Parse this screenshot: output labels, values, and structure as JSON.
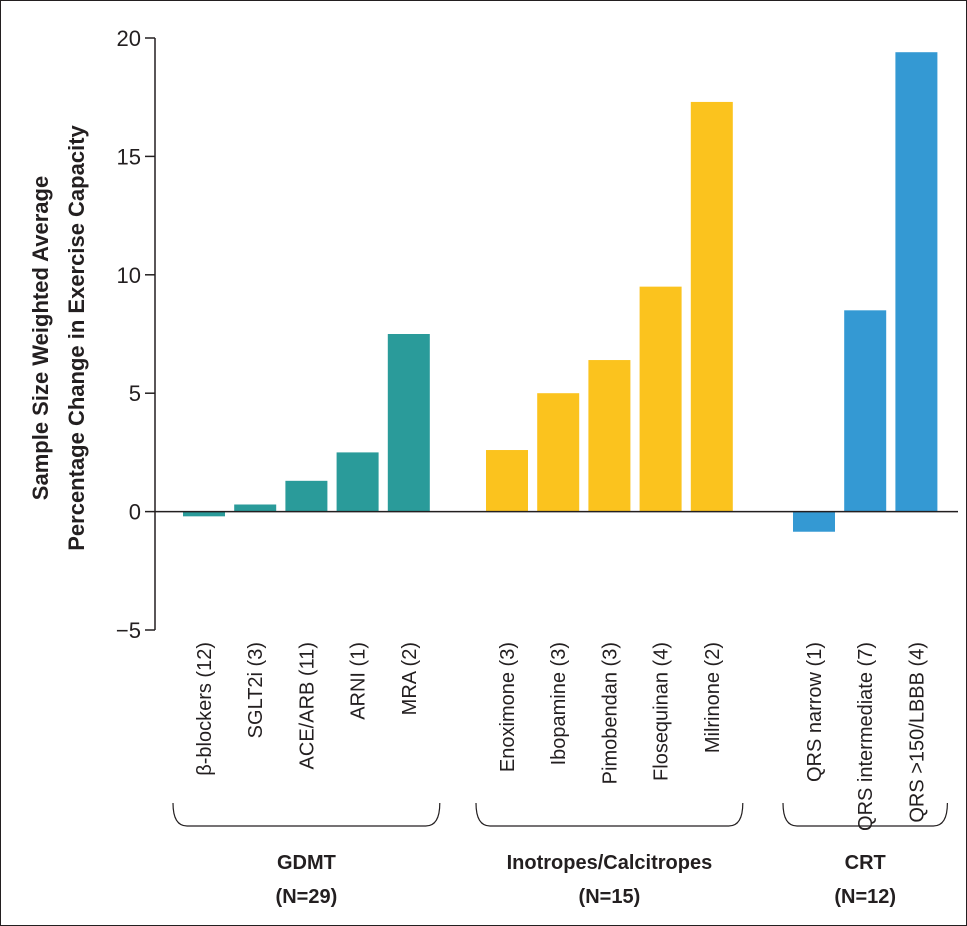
{
  "chart_data": {
    "type": "bar",
    "ylabel_line1": "Sample Size Weighted Average",
    "ylabel_line2": "Percentage Change in Exercise Capacity",
    "ylim": [
      -5,
      20
    ],
    "yticks": [
      -5,
      0,
      5,
      10,
      15,
      20
    ],
    "ytick_labels": [
      "−5",
      "0",
      "5",
      "10",
      "15",
      "20"
    ],
    "grid": false,
    "groups": [
      {
        "name": "GDMT",
        "n_label": "(N=29)",
        "color": "#2a9b9a",
        "bars": [
          {
            "label": "β-blockers (12)",
            "value": -0.2
          },
          {
            "label": "SGLT2i (3)",
            "value": 0.3
          },
          {
            "label": "ACE/ARB (11)",
            "value": 1.3
          },
          {
            "label": "ARNI (1)",
            "value": 2.5
          },
          {
            "label": "MRA (2)",
            "value": 7.5
          }
        ]
      },
      {
        "name": "Inotropes/Calcitropes",
        "n_label": "(N=15)",
        "color": "#fbc31e",
        "bars": [
          {
            "label": "Enoximone (3)",
            "value": 2.6
          },
          {
            "label": "Ibopamine (3)",
            "value": 5.0
          },
          {
            "label": "Pimobendan (3)",
            "value": 6.4
          },
          {
            "label": "Flosequinan (4)",
            "value": 9.5
          },
          {
            "label": "Milrinone (2)",
            "value": 17.3
          }
        ]
      },
      {
        "name": "CRT",
        "n_label": "(N=12)",
        "color": "#3499d3",
        "bars": [
          {
            "label": "QRS narrow (1)",
            "value": -0.85
          },
          {
            "label": "QRS intermediate (7)",
            "value": 8.5
          },
          {
            "label": "QRS >150/LBBB (4)",
            "value": 19.4
          }
        ]
      }
    ]
  }
}
